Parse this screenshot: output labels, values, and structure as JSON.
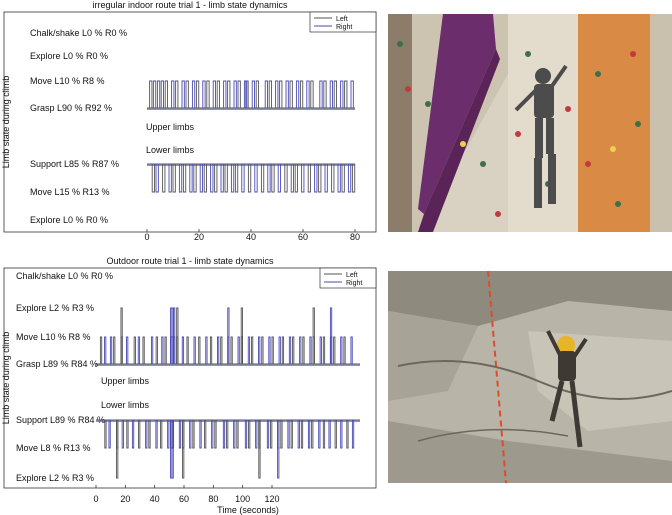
{
  "chart_data": [
    {
      "type": "line",
      "title": "irregular indoor route trial 1 - limb state dynamics",
      "ylabel": "Limb state during climb",
      "xlabel": "",
      "xlim": [
        0,
        80
      ],
      "x_ticks": [
        "0",
        "20",
        "40",
        "60",
        "80"
      ],
      "legend": {
        "placement": "top-right",
        "entries": [
          "Left",
          "Right"
        ]
      },
      "upper_label": "Upper limbs",
      "lower_label": "Lower limbs",
      "upper_states": [
        "Chalk/shake L0 % R0 %",
        "Explore L0 % R0 %",
        "Move L10 % R8 %",
        "Grasp L90 % R92 %"
      ],
      "lower_states": [
        "Support L85 % R87 %",
        "Move L15 % R13 %",
        "Explore L0 % R0 %"
      ],
      "series": [
        {
          "name": "Left",
          "color": "#555555",
          "upper_move_times": [
            1,
            4,
            7,
            11,
            15,
            19,
            23,
            27,
            31,
            35,
            38,
            42,
            47,
            51,
            55,
            59,
            63,
            68,
            72,
            76
          ],
          "lower_move_times": [
            2,
            6,
            10,
            14,
            18,
            22,
            26,
            30,
            34,
            39,
            44,
            48,
            53,
            57,
            62,
            66,
            71,
            75,
            79
          ]
        },
        {
          "name": "Right",
          "color": "#4a4ab8",
          "upper_move_times": [
            2,
            5,
            9,
            13,
            17,
            21,
            25,
            29,
            33,
            37,
            40,
            45,
            49,
            53,
            57,
            61,
            66,
            70,
            74,
            78
          ],
          "lower_move_times": [
            3,
            8,
            12,
            16,
            20,
            24,
            28,
            32,
            36,
            41,
            46,
            50,
            55,
            59,
            64,
            68,
            73,
            77
          ]
        }
      ]
    },
    {
      "type": "line",
      "title": "Outdoor route trial 1 - limb state dynamics",
      "ylabel": "Limb state during climb",
      "xlabel": "Time (seconds)",
      "xlim": [
        0,
        180
      ],
      "x_ticks": [
        "0",
        "20",
        "40",
        "60",
        "80",
        "100",
        "120"
      ],
      "legend": {
        "placement": "top-right",
        "entries": [
          "Left",
          "Right"
        ]
      },
      "upper_label": "Upper limbs",
      "lower_label": "Lower limbs",
      "upper_states": [
        "Chalk/shake L0 % R0 %",
        "Explore L2 % R3 %",
        "Move L10 % R8 %",
        "Grasp L89 % R84 %"
      ],
      "lower_states": [
        "Support L89 % R84 %",
        "Move L8 % R13 %",
        "Explore L2 % R3 %"
      ],
      "series": [
        {
          "name": "Left",
          "color": "#555555",
          "upper_move_times": [
            3,
            12,
            17,
            26,
            32,
            41,
            47,
            55,
            62,
            70,
            78,
            85,
            92,
            99,
            106,
            113,
            120,
            127,
            134,
            141,
            148,
            155,
            162,
            169
          ],
          "upper_explore_times": [
            17,
            55,
            99,
            148
          ],
          "lower_move_times": [
            6,
            14,
            21,
            29,
            36,
            44,
            52,
            59,
            66,
            74,
            81,
            89,
            96,
            104,
            111,
            119,
            126,
            133,
            140,
            147,
            155,
            163,
            171
          ],
          "lower_explore_times": [
            14,
            59,
            111
          ]
        },
        {
          "name": "Right",
          "color": "#4a4ab8",
          "upper_move_times": [
            5,
            9,
            20,
            28,
            37,
            44,
            50,
            51,
            52,
            58,
            66,
            74,
            82,
            89,
            96,
            103,
            110,
            117,
            124,
            131,
            138,
            145,
            152,
            159,
            166,
            173
          ],
          "upper_explore_times": [
            50,
            51,
            52,
            89,
            159
          ],
          "lower_move_times": [
            8,
            17,
            24,
            33,
            40,
            48,
            50,
            51,
            56,
            63,
            70,
            78,
            86,
            93,
            101,
            108,
            116,
            123,
            130,
            137,
            144,
            151,
            158,
            166,
            174
          ],
          "lower_explore_times": [
            50,
            51,
            123
          ]
        }
      ]
    }
  ],
  "photos": [
    {
      "name": "indoor-climbing-wall-photo",
      "scene": "indoor"
    },
    {
      "name": "outdoor-rock-climbing-photo",
      "scene": "outdoor"
    }
  ]
}
